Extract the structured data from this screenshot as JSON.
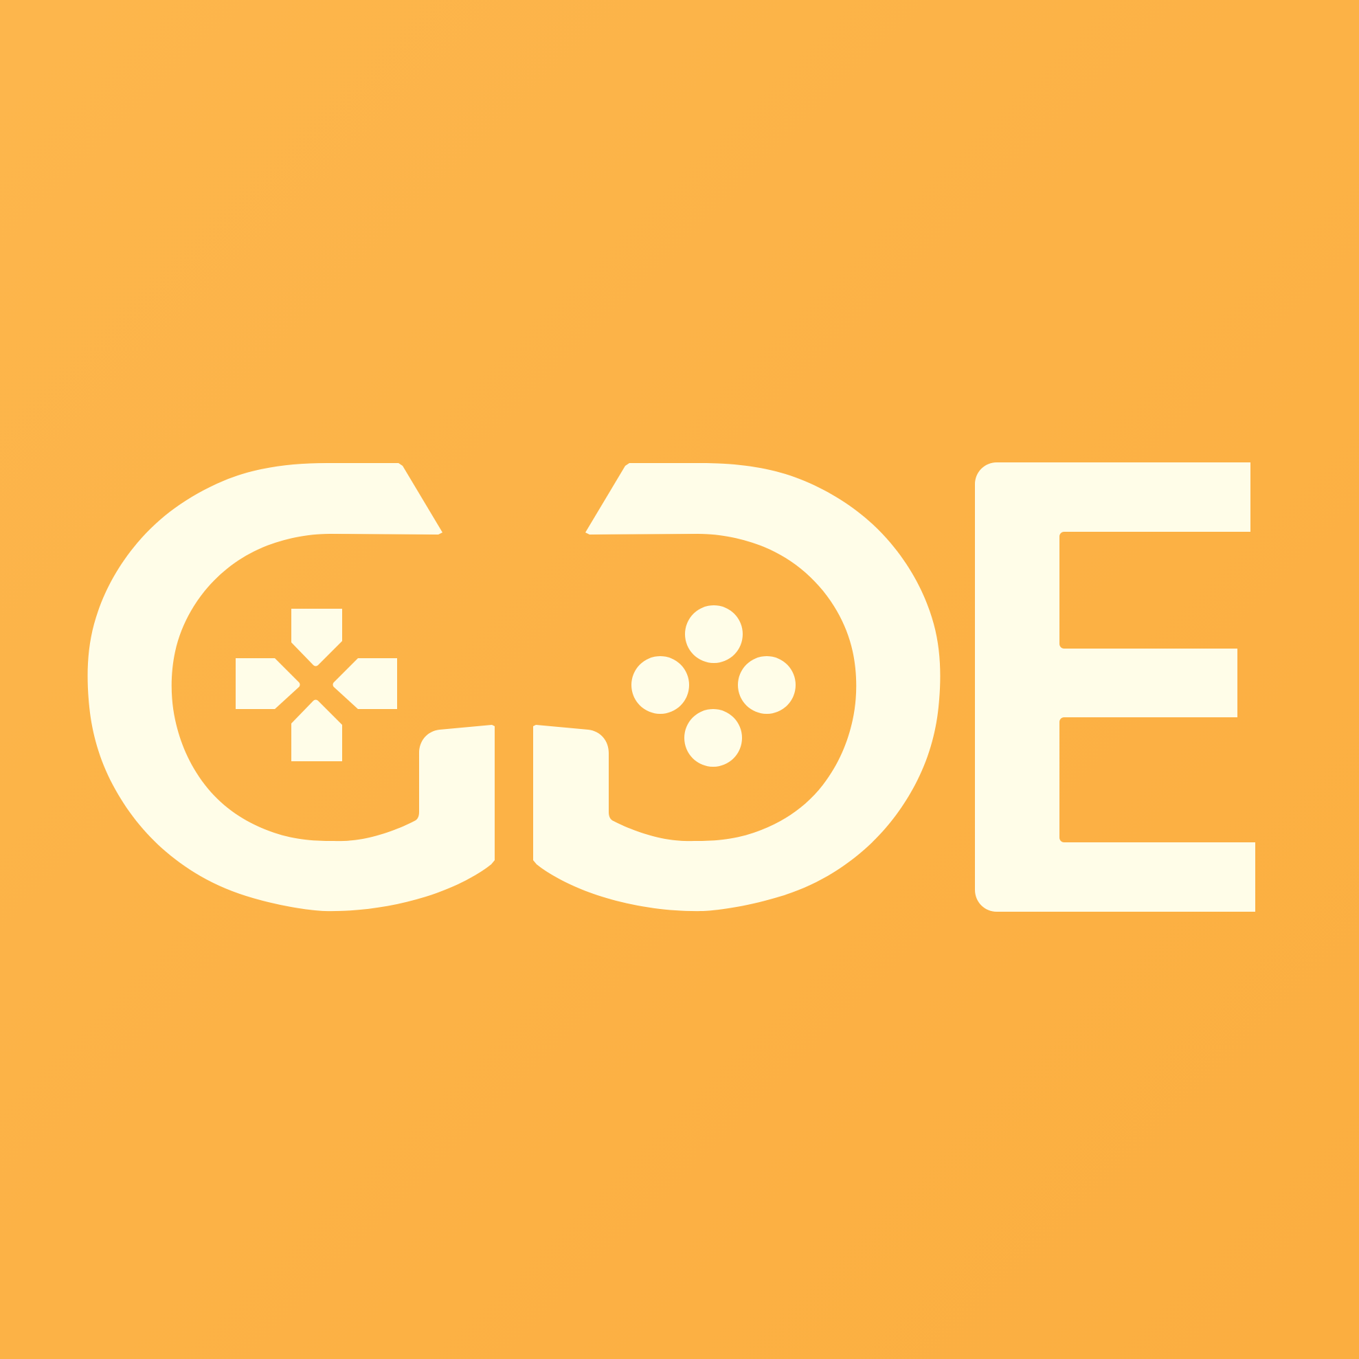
{
  "logo": {
    "text": "GOE",
    "background_color": "#FCB244",
    "foreground_color": "#FFFDE8",
    "icons": {
      "left": "dpad-icon",
      "right": "face-buttons-icon"
    }
  }
}
